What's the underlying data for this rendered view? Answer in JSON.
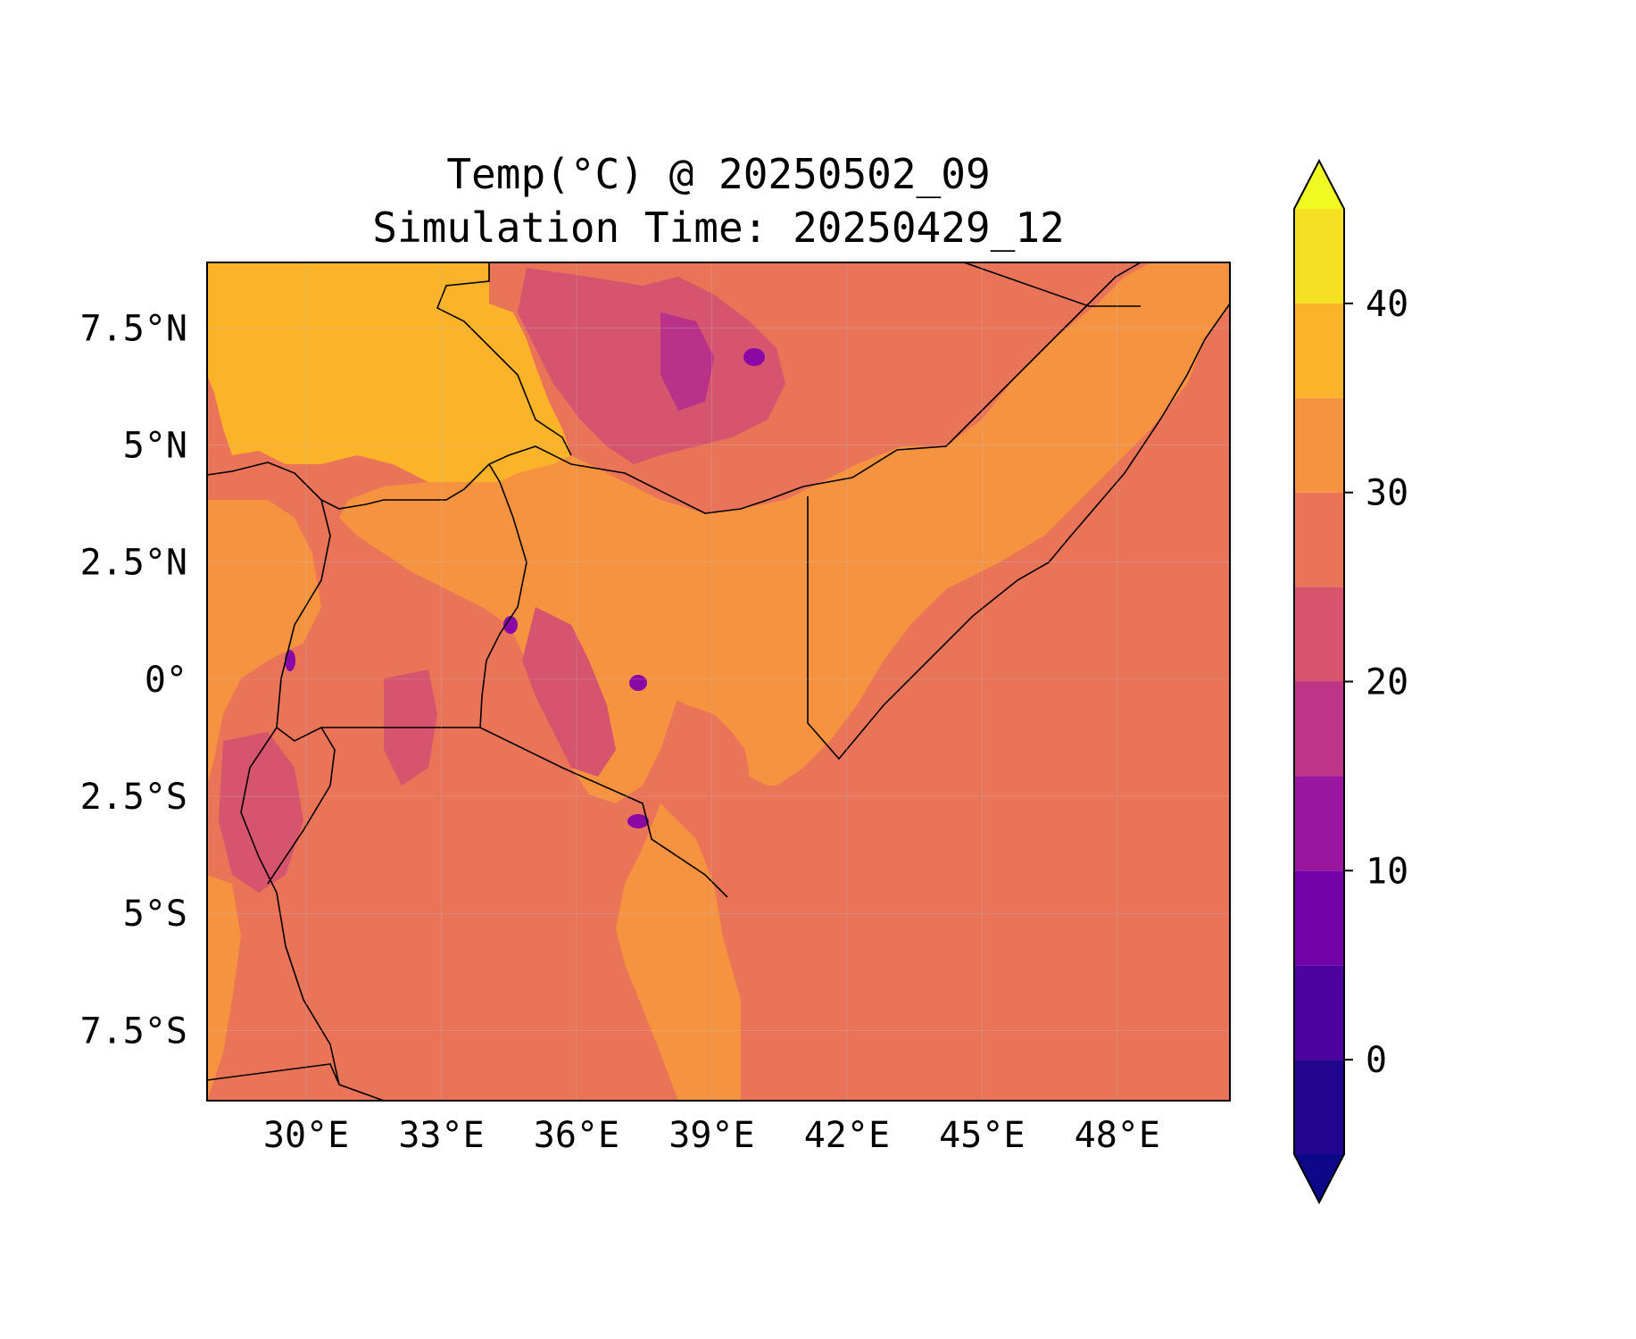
{
  "title": {
    "line1": "Temp(°C) @ 20250502_09",
    "line2": "Simulation Time: 20250429_12"
  },
  "map": {
    "extent": {
      "lon": [
        27.8,
        50.5
      ],
      "lat": [
        -9.0,
        8.9
      ]
    },
    "x_ticks": [
      {
        "lon": 30,
        "label": "30°E"
      },
      {
        "lon": 33,
        "label": "33°E"
      },
      {
        "lon": 36,
        "label": "36°E"
      },
      {
        "lon": 39,
        "label": "39°E"
      },
      {
        "lon": 42,
        "label": "42°E"
      },
      {
        "lon": 45,
        "label": "45°E"
      },
      {
        "lon": 48,
        "label": "48°E"
      }
    ],
    "y_ticks": [
      {
        "lat": 7.5,
        "label": "7.5°N"
      },
      {
        "lat": 5,
        "label": "5°N"
      },
      {
        "lat": 2.5,
        "label": "2.5°N"
      },
      {
        "lat": 0,
        "label": "0°"
      },
      {
        "lat": -2.5,
        "label": "2.5°S"
      },
      {
        "lat": -5,
        "label": "5°S"
      },
      {
        "lat": -7.5,
        "label": "7.5°S"
      }
    ],
    "gridlines": true,
    "colormap": "plasma",
    "background_band_color": "#e97458",
    "feature_colors": {
      "hot": "#fbb32a",
      "warm": "#f69340",
      "mild": "#e97458",
      "cool": "#d6546e",
      "cold": "#b83289",
      "very_cold": "#8a09a5"
    }
  },
  "colorbar": {
    "levels": [
      -5,
      0,
      5,
      10,
      15,
      20,
      25,
      30,
      35,
      40,
      45
    ],
    "extend": "both",
    "tick_values": [
      0,
      10,
      20,
      30,
      40
    ],
    "tick_labels": [
      "0",
      "10",
      "20",
      "30",
      "40"
    ],
    "band_colors": [
      "#23068f",
      "#4d03a0",
      "#7301a8",
      "#9a169f",
      "#bc3587",
      "#d6546e",
      "#e97458",
      "#f69340",
      "#fbb32a",
      "#f5e024"
    ],
    "under_color": "#0d0887",
    "over_color": "#f0f921"
  }
}
